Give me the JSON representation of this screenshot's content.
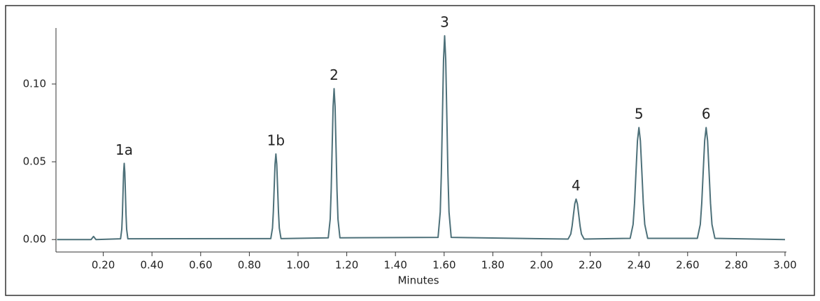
{
  "chart_data": {
    "type": "line",
    "x_label": "Minutes",
    "x": [
      0.01,
      0.15,
      0.16,
      0.17,
      0.271,
      0.276,
      0.2785,
      0.281,
      0.2835,
      0.286,
      0.2885,
      0.291,
      0.2935,
      0.296,
      0.301,
      0.888,
      0.895,
      0.8985,
      0.902,
      0.9055,
      0.909,
      0.9125,
      0.916,
      0.9195,
      0.923,
      0.93,
      1.124,
      1.132,
      1.136,
      1.14,
      1.144,
      1.148,
      1.152,
      1.156,
      1.16,
      1.164,
      1.172,
      1.575,
      1.584,
      1.5885,
      1.593,
      1.5975,
      1.602,
      1.6065,
      1.611,
      1.6155,
      1.62,
      1.629,
      2.109,
      2.12,
      2.1255,
      2.131,
      2.1365,
      2.142,
      2.1475,
      2.153,
      2.1585,
      2.164,
      2.175,
      2.364,
      2.376,
      2.382,
      2.388,
      2.394,
      2.4,
      2.406,
      2.412,
      2.418,
      2.424,
      2.436,
      2.64,
      2.652,
      2.658,
      2.664,
      2.67,
      2.676,
      2.682,
      2.688,
      2.694,
      2.7,
      2.712,
      3.0
    ],
    "values": [
      0,
      0,
      0.002,
      0,
      0.0005,
      0.0066,
      0.0159,
      0.0297,
      0.0432,
      0.049,
      0.0432,
      0.0297,
      0.0159,
      0.0066,
      0.0005,
      0.0006,
      0.0074,
      0.0179,
      0.0334,
      0.0485,
      0.055,
      0.0485,
      0.0334,
      0.0179,
      0.0074,
      0.0006,
      0.0011,
      0.0131,
      0.0315,
      0.0589,
      0.0856,
      0.097,
      0.0856,
      0.0589,
      0.0315,
      0.0131,
      0.0011,
      0.0014,
      0.0177,
      0.0426,
      0.0795,
      0.1155,
      0.131,
      0.1155,
      0.0795,
      0.0426,
      0.0177,
      0.0014,
      0.0003,
      0.0035,
      0.0085,
      0.0158,
      0.0229,
      0.026,
      0.0229,
      0.0158,
      0.0085,
      0.0035,
      0.0003,
      0.0008,
      0.0097,
      0.0234,
      0.0437,
      0.0635,
      0.072,
      0.0635,
      0.0437,
      0.0234,
      0.0097,
      0.0008,
      0.0008,
      0.0097,
      0.0234,
      0.0437,
      0.0635,
      0.072,
      0.0635,
      0.0437,
      0.0234,
      0.0097,
      0.0008,
      0
    ],
    "color": "#4d7079",
    "xlim": [
      0,
      3.0
    ],
    "ylim": [
      -0.008,
      0.136
    ],
    "xticks": [
      {
        "value": 0.2,
        "label": "0.20"
      },
      {
        "value": 0.4,
        "label": "0.40"
      },
      {
        "value": 0.6,
        "label": "0.60"
      },
      {
        "value": 0.8,
        "label": "0.80"
      },
      {
        "value": 1.0,
        "label": "1.00"
      },
      {
        "value": 1.2,
        "label": "1.20"
      },
      {
        "value": 1.4,
        "label": "1.40"
      },
      {
        "value": 1.6,
        "label": "1.60"
      },
      {
        "value": 1.8,
        "label": "1.80"
      },
      {
        "value": 2.0,
        "label": "2.00"
      },
      {
        "value": 2.2,
        "label": "2.20"
      },
      {
        "value": 2.4,
        "label": "2.40"
      },
      {
        "value": 2.6,
        "label": "2.60"
      },
      {
        "value": 2.8,
        "label": "2.80"
      },
      {
        "value": 3.0,
        "label": "3.00"
      }
    ],
    "yticks": [
      {
        "value": 0,
        "label": "0.00"
      },
      {
        "value": 0.05,
        "label": "0.05"
      },
      {
        "value": 0.1,
        "label": "0.10"
      }
    ],
    "annotations": [
      {
        "text": "1a",
        "x": 0.286,
        "y": 0.049
      },
      {
        "text": "1b",
        "x": 0.909,
        "y": 0.055
      },
      {
        "text": "2",
        "x": 1.148,
        "y": 0.097
      },
      {
        "text": "3",
        "x": 1.602,
        "y": 0.131
      },
      {
        "text": "4",
        "x": 2.142,
        "y": 0.026
      },
      {
        "text": "5",
        "x": 2.4,
        "y": 0.072
      },
      {
        "text": "6",
        "x": 2.676,
        "y": 0.072
      }
    ]
  }
}
